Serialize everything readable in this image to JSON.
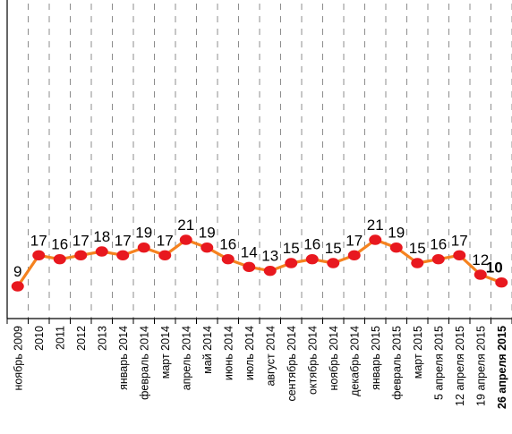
{
  "chart_data": {
    "type": "line",
    "title": "",
    "xlabel": "",
    "ylabel": "",
    "ylim": [
      0,
      30
    ],
    "grid": true,
    "legend": "none",
    "colors": {
      "line": "#f5821f",
      "marker": "#e8181f",
      "grid": "#8c8c8c"
    },
    "categories": [
      "ноябрь 2009",
      "2010",
      "2011",
      "2012",
      "2013",
      "январь 2014",
      "февраль 2014",
      "март 2014",
      "апрель 2014",
      "май 2014",
      "июнь 2014",
      "июль 2014",
      "август 2014",
      "сентябрь 2014",
      "октябрь 2014",
      "ноябрь 2014",
      "декабрь 2014",
      "январь 2015",
      "февраль 2015",
      "март 2015",
      "5 апреля 2015",
      "12 апреля 2015",
      "19 апреля 2015",
      "26 апреля 2015"
    ],
    "values": [
      9,
      17,
      16,
      17,
      18,
      17,
      19,
      17,
      21,
      19,
      16,
      14,
      13,
      15,
      16,
      15,
      17,
      21,
      19,
      15,
      16,
      17,
      12,
      10
    ],
    "highlight_last": true
  }
}
